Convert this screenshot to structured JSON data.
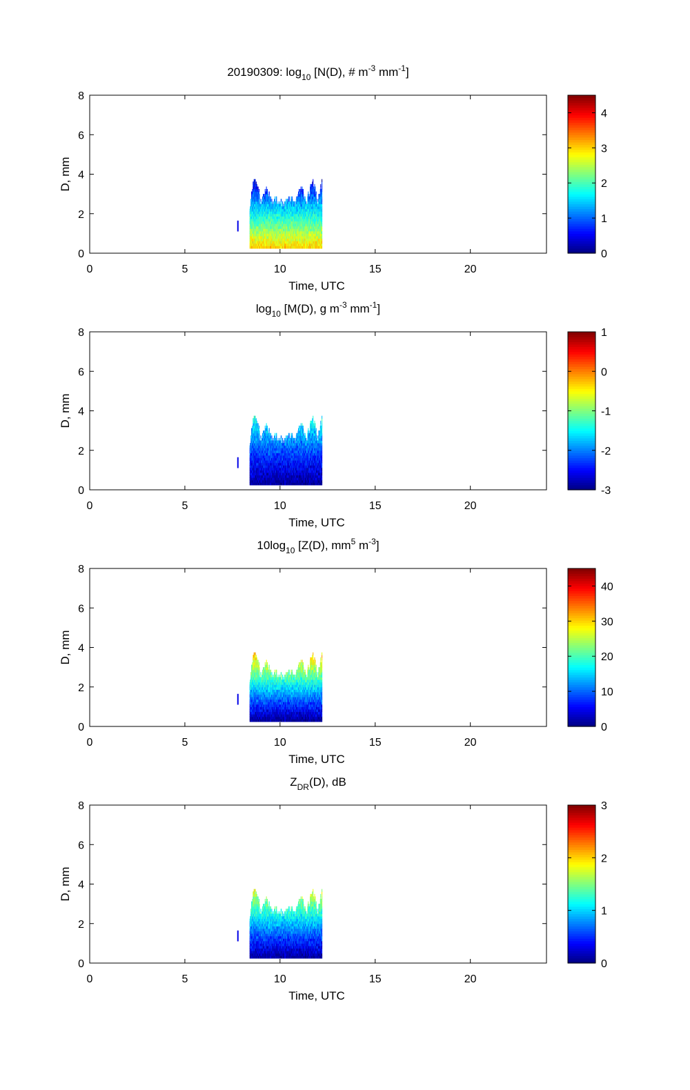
{
  "figure": {
    "background": "#ffffff"
  },
  "chart_data": [
    {
      "type": "heatmap",
      "title_main": "20190309: log",
      "title_sub": "10",
      "title_rest_a": " [N(D), # m",
      "title_sup1": "-3",
      "title_rest_b": " mm",
      "title_sup2": "-1",
      "title_end": "]",
      "xlabel": "Time, UTC",
      "ylabel": "D, mm",
      "xlim": [
        0,
        24
      ],
      "ylim": [
        0,
        8
      ],
      "xticks": [
        "0",
        "5",
        "10",
        "15",
        "20"
      ],
      "yticks": [
        "0",
        "2",
        "4",
        "6",
        "8"
      ],
      "colorbar": {
        "min": 0,
        "max": 4.5,
        "ticks": [
          "0",
          "1",
          "2",
          "3",
          "4"
        ]
      },
      "profile": {
        "time_range": [
          8.4,
          12.2
        ],
        "d_range": [
          0.25,
          3.9
        ],
        "small_d_value": 3.0,
        "large_d_value": 0.2
      }
    },
    {
      "type": "heatmap",
      "title_main": "log",
      "title_sub": "10",
      "title_rest_a": " [M(D), g m",
      "title_sup1": "-3",
      "title_rest_b": " mm",
      "title_sup2": "-1",
      "title_end": "]",
      "xlabel": "Time, UTC",
      "ylabel": "D, mm",
      "xlim": [
        0,
        24
      ],
      "ylim": [
        0,
        8
      ],
      "xticks": [
        "0",
        "5",
        "10",
        "15",
        "20"
      ],
      "yticks": [
        "0",
        "2",
        "4",
        "6",
        "8"
      ],
      "colorbar": {
        "min": -3,
        "max": 1,
        "ticks": [
          "-3",
          "-2",
          "-1",
          "0",
          "1"
        ]
      },
      "profile": {
        "time_range": [
          8.4,
          12.2
        ],
        "d_range": [
          0.25,
          3.9
        ],
        "small_d_value": -2.9,
        "large_d_value": -1.3
      }
    },
    {
      "type": "heatmap",
      "title_main": "10log",
      "title_sub": "10",
      "title_rest_a": " [Z(D),  mm",
      "title_sup1": "5",
      "title_rest_b": " m",
      "title_sup2": "-3",
      "title_end": "]",
      "xlabel": "Time, UTC",
      "ylabel": "D, mm",
      "xlim": [
        0,
        24
      ],
      "ylim": [
        0,
        8
      ],
      "xticks": [
        "0",
        "5",
        "10",
        "15",
        "20"
      ],
      "yticks": [
        "0",
        "2",
        "4",
        "6",
        "8"
      ],
      "colorbar": {
        "min": 0,
        "max": 45,
        "ticks": [
          "0",
          "10",
          "20",
          "30",
          "40"
        ]
      },
      "profile": {
        "time_range": [
          8.4,
          12.2
        ],
        "d_range": [
          0.25,
          3.9
        ],
        "small_d_value": 1,
        "large_d_value": 33
      }
    },
    {
      "type": "heatmap",
      "title_main": "Z",
      "title_sub": "DR",
      "title_rest_a": "(D), dB",
      "title_sup1": "",
      "title_rest_b": "",
      "title_sup2": "",
      "title_end": "",
      "xlabel": "Time, UTC",
      "ylabel": "D, mm",
      "xlim": [
        0,
        24
      ],
      "ylim": [
        0,
        8
      ],
      "xticks": [
        "0",
        "5",
        "10",
        "15",
        "20"
      ],
      "yticks": [
        "0",
        "2",
        "4",
        "6",
        "8"
      ],
      "colorbar": {
        "min": 0,
        "max": 3,
        "ticks": [
          "0",
          "1",
          "2",
          "3"
        ]
      },
      "profile": {
        "time_range": [
          8.4,
          12.2
        ],
        "d_range": [
          0.25,
          3.9
        ],
        "small_d_value": 0.1,
        "large_d_value": 1.9
      }
    }
  ]
}
